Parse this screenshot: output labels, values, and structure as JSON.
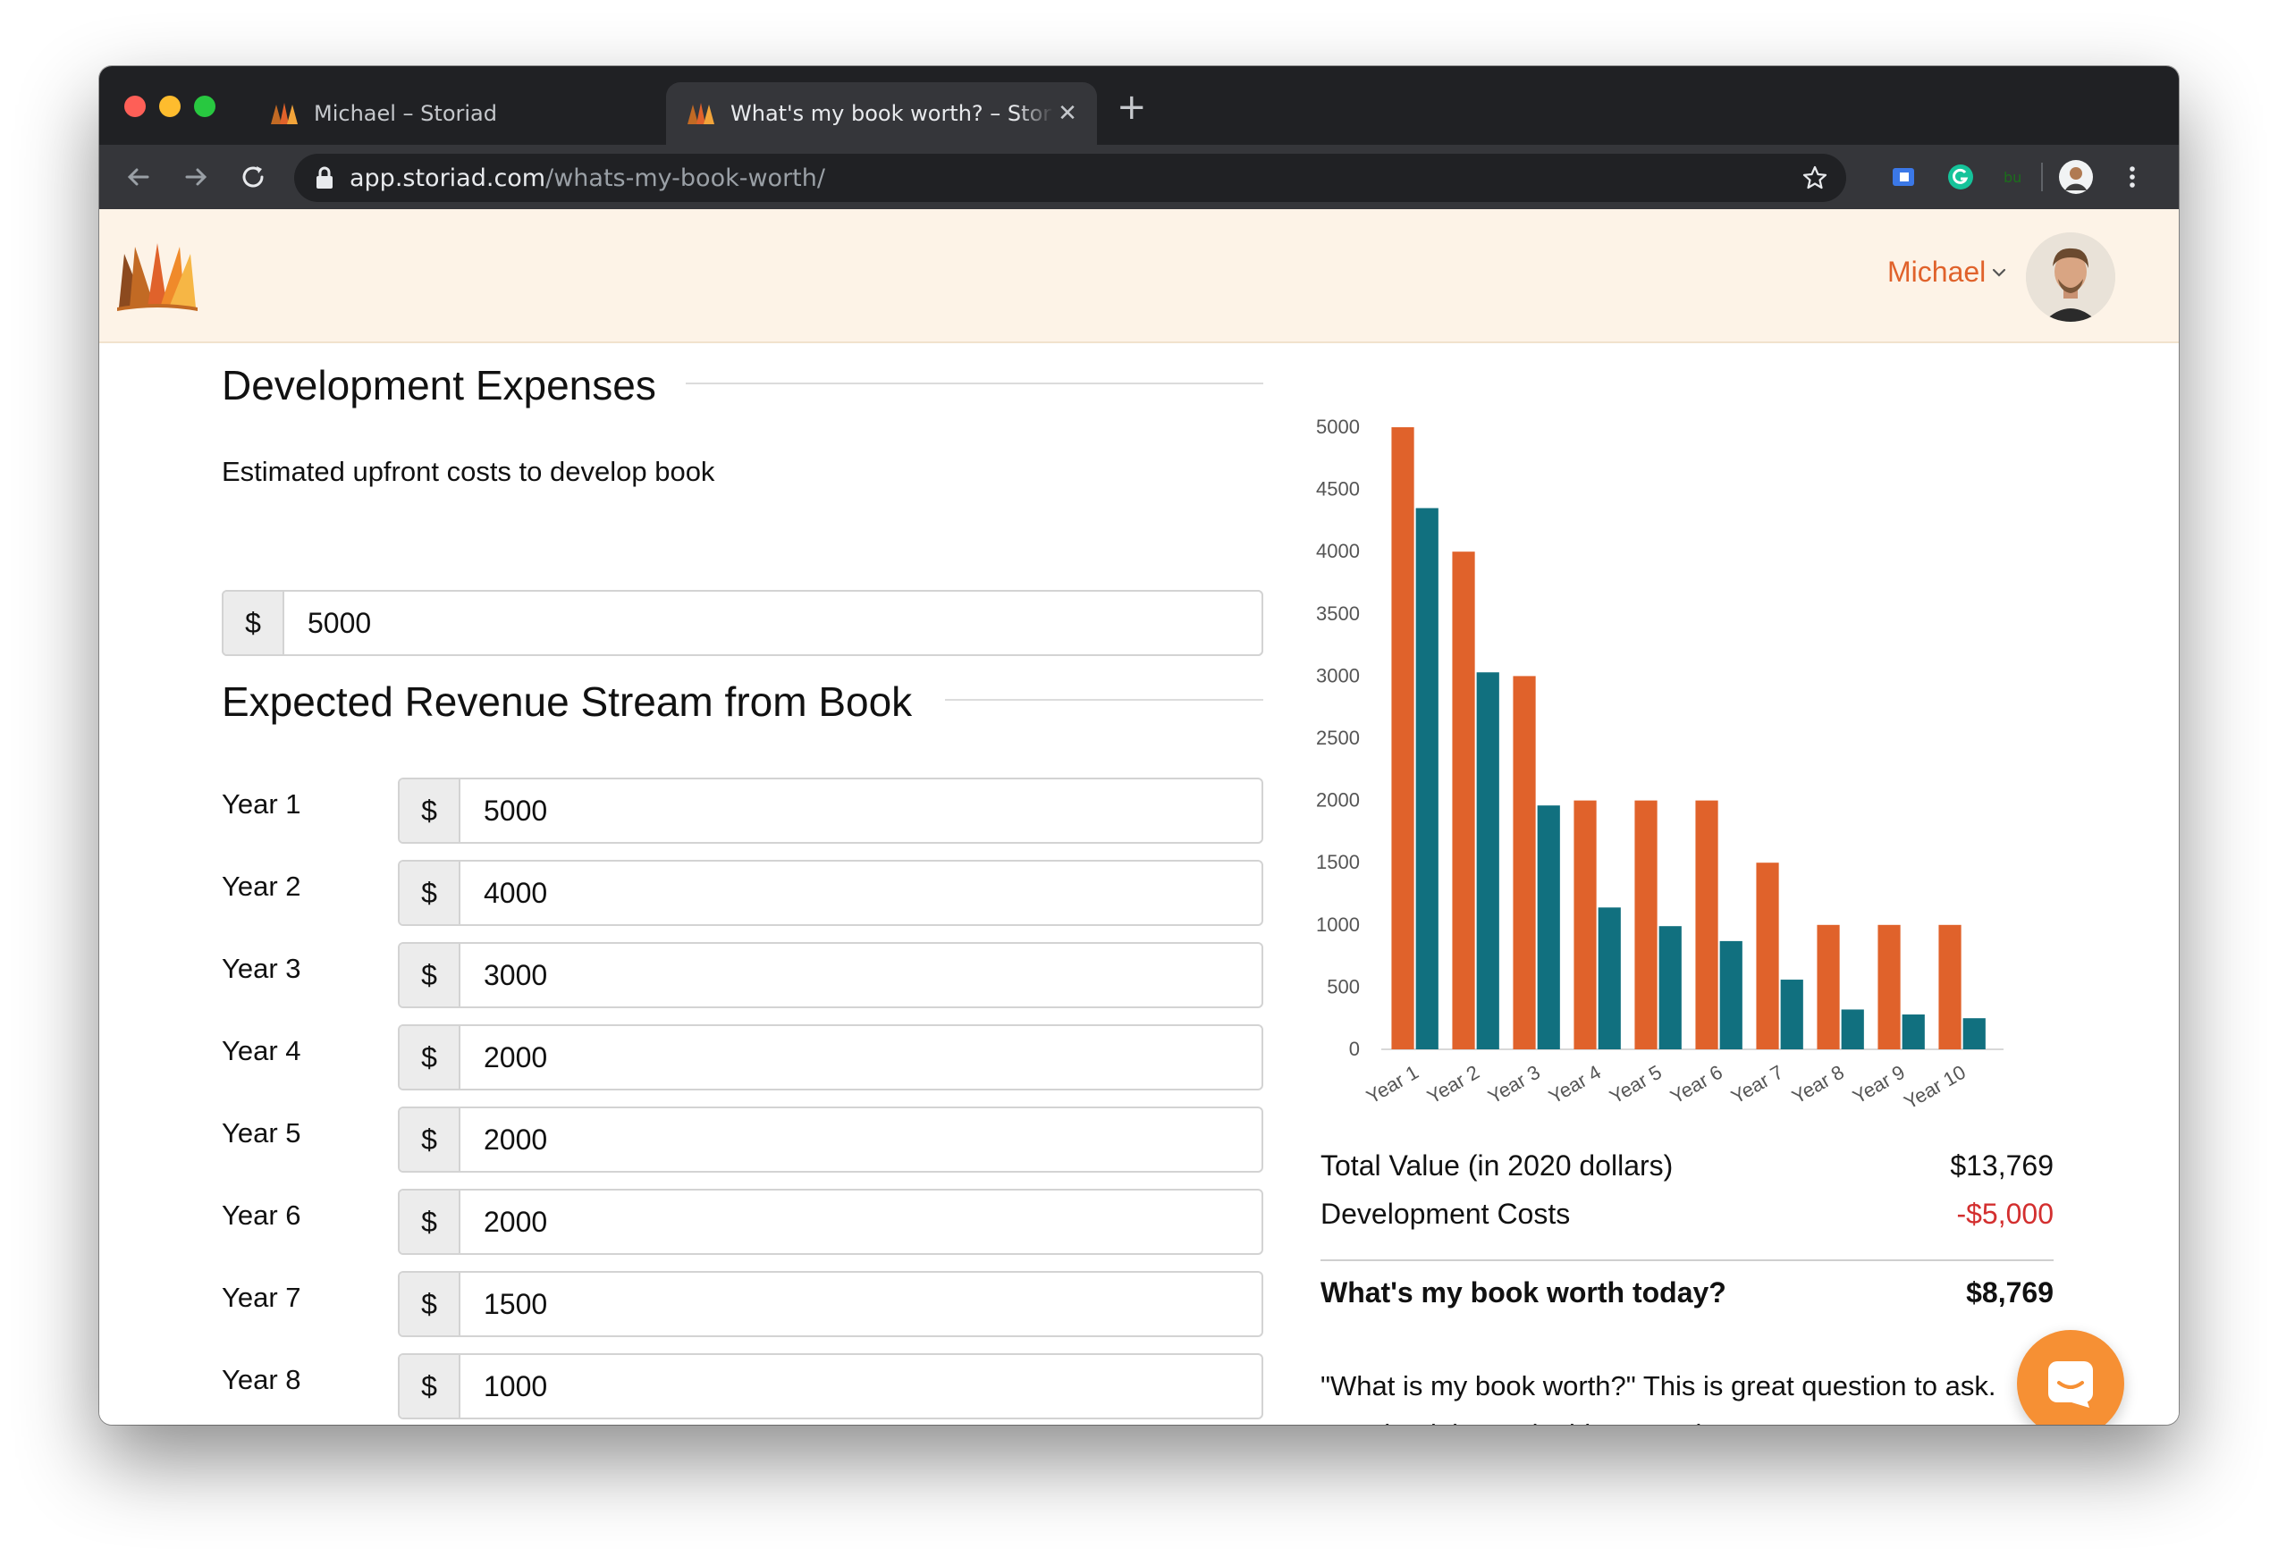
{
  "browser": {
    "tabs": [
      {
        "title": "Michael – Storiad",
        "active": false
      },
      {
        "title": "What's my book worth? – Storiad",
        "active": true
      }
    ],
    "new_tab_label": "+",
    "close_glyph": "✕",
    "url_host": "app.storiad.com",
    "url_path": "/whats-my-book-worth/",
    "icons": [
      "back-icon",
      "forward-icon",
      "reload-icon",
      "lock-icon",
      "bookmark-star-icon",
      "extension-icon",
      "grammarly-icon",
      "buffer-icon",
      "profile-icon",
      "kebab-menu-icon"
    ]
  },
  "header": {
    "user_name": "Michael",
    "brand_color": "#e0622b",
    "background_color": "#fdf3e7"
  },
  "development": {
    "section_title": "Development Expenses",
    "field_label": "Estimated upfront costs to develop book",
    "currency_prefix": "$",
    "value": "5000"
  },
  "revenue": {
    "section_title": "Expected Revenue Stream from Book",
    "currency_prefix": "$",
    "rows": [
      {
        "label": "Year 1",
        "value": "5000"
      },
      {
        "label": "Year 2",
        "value": "4000"
      },
      {
        "label": "Year 3",
        "value": "3000"
      },
      {
        "label": "Year 4",
        "value": "2000"
      },
      {
        "label": "Year 5",
        "value": "2000"
      },
      {
        "label": "Year 6",
        "value": "2000"
      },
      {
        "label": "Year 7",
        "value": "1500"
      },
      {
        "label": "Year 8",
        "value": "1000"
      }
    ]
  },
  "chart_data": {
    "type": "bar",
    "categories": [
      "Year 1",
      "Year 2",
      "Year 3",
      "Year 4",
      "Year 5",
      "Year 6",
      "Year 7",
      "Year 8",
      "Year 9",
      "Year 10"
    ],
    "series": [
      {
        "color": "#e0622b",
        "values": [
          5000,
          4000,
          3000,
          2000,
          2000,
          2000,
          1500,
          1000,
          1000,
          1000
        ]
      },
      {
        "color": "#11707f",
        "values": [
          4350,
          3030,
          1960,
          1140,
          990,
          870,
          560,
          320,
          280,
          250
        ]
      }
    ],
    "ylim": [
      0,
      5000
    ],
    "yticks": [
      "0",
      "500",
      "1000",
      "1500",
      "2000",
      "2500",
      "3000",
      "3500",
      "4000",
      "4500",
      "5000"
    ],
    "grid": false,
    "legend": "none"
  },
  "summary": {
    "total_label": "Total Value (in 2020 dollars)",
    "total_value": "$13,769",
    "dev_label": "Development Costs",
    "dev_value": "-$5,000",
    "worth_label": "What's my book worth today?",
    "worth_value": "$8,769",
    "negative_color": "#d32f2f"
  },
  "description": "\"What is my book worth?\" This is great question to ask. Your book is a valuable asset that can generate revenues for years to come. Understanding your book's value will",
  "chat_widget": {
    "icon": "chat-icon",
    "color": "#f69034"
  }
}
